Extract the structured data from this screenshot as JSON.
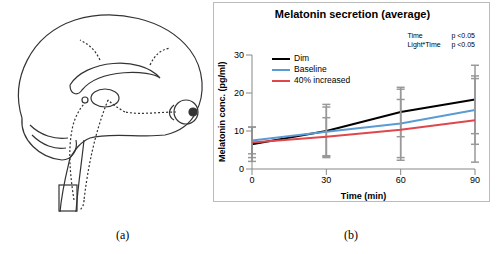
{
  "chart_data": {
    "type": "line",
    "title": "Melatonin secretion (average)",
    "x_label": "Time (min)",
    "y_label": "Melatonin conc. (pg/ml)",
    "categories": [
      0,
      30,
      60,
      90
    ],
    "series": [
      {
        "name": "Dim",
        "color": "#000000",
        "values": [
          6.5,
          10,
          15,
          18.3
        ],
        "errors": [
          4.5,
          7,
          6.5,
          9
        ]
      },
      {
        "name": "Baseline",
        "color": "#5b9bd5",
        "values": [
          7.5,
          9.8,
          12,
          15.5
        ],
        "errors": [
          3.5,
          6.5,
          9,
          9
        ]
      },
      {
        "name": "40% increased",
        "color": "#e0474c",
        "values": [
          7,
          8.5,
          10.3,
          12.8
        ],
        "errors": [
          4,
          5,
          8,
          11
        ]
      }
    ],
    "ylim": [
      0,
      30
    ],
    "yticks": [
      0,
      10,
      20,
      30
    ],
    "grid": false,
    "legend": "upper left",
    "annotations": [
      [
        "Time",
        "p <0.05"
      ],
      [
        "Light*Time",
        "p <0.05"
      ]
    ]
  },
  "panel_labels": [
    "(a)",
    "(b)"
  ]
}
